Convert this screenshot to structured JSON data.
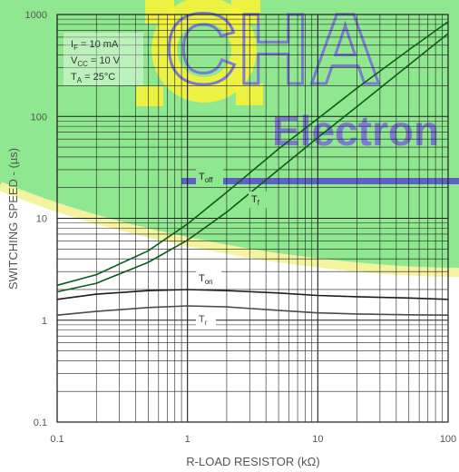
{
  "chart_data": {
    "type": "line",
    "xlabel": "R-LOAD RESISTOR (kΩ)",
    "ylabel": "SWITCHING SPEED - (µs)",
    "x_scale": "log",
    "y_scale": "log",
    "xlim": [
      0.1,
      100
    ],
    "ylim": [
      0.1,
      1000
    ],
    "grid": true,
    "x_ticks": [
      "0.1",
      "1",
      "10",
      "100"
    ],
    "y_ticks": [
      "0.1",
      "1",
      "10",
      "100",
      "1000"
    ],
    "conditions": {
      "if": {
        "main": "I",
        "sub": "F",
        "rest": " = 10 mA"
      },
      "vcc": {
        "main": "V",
        "sub": "CC",
        "rest": " = 10 V"
      },
      "ta": {
        "main": "T",
        "sub": "A",
        "rest": " = 25°C"
      }
    },
    "series": [
      {
        "name": "Toff",
        "main": "T",
        "sub": "off",
        "x": [
          0.1,
          0.2,
          0.5,
          1,
          2,
          5,
          10,
          20,
          50,
          100
        ],
        "y": [
          2.2,
          2.8,
          4.8,
          8.8,
          18,
          48,
          95,
          190,
          450,
          850
        ]
      },
      {
        "name": "Tf",
        "main": "T",
        "sub": "f",
        "x": [
          0.1,
          0.2,
          0.5,
          1,
          2,
          5,
          10,
          20,
          50,
          100
        ],
        "y": [
          1.9,
          2.3,
          3.7,
          6.1,
          11.5,
          30,
          62,
          125,
          320,
          650
        ]
      },
      {
        "name": "Ton",
        "main": "T",
        "sub": "on",
        "x": [
          0.1,
          0.2,
          0.5,
          1,
          2,
          5,
          10,
          20,
          50,
          100
        ],
        "y": [
          1.6,
          1.8,
          1.95,
          2.0,
          1.95,
          1.85,
          1.75,
          1.7,
          1.65,
          1.6
        ]
      },
      {
        "name": "Tr",
        "main": "T",
        "sub": "r",
        "x": [
          0.1,
          0.2,
          0.5,
          1,
          2,
          5,
          10,
          20,
          50,
          100
        ],
        "y": [
          1.12,
          1.22,
          1.33,
          1.38,
          1.35,
          1.25,
          1.18,
          1.15,
          1.13,
          1.12
        ]
      }
    ]
  },
  "watermark": {
    "text_main": "CHA",
    "text_sub": "Electron",
    "colors": {
      "background": "#8fe88f",
      "swoosh": "#f3f3a0",
      "gear": "#f7f23a",
      "text": "#7b7bd0",
      "band": "#5e62c8"
    }
  },
  "style": {
    "grid_color": "#1e1e1e",
    "curve_color": "#1c1c1c",
    "curve_color_green": "#0e5a1a",
    "label_color": "#555555"
  }
}
